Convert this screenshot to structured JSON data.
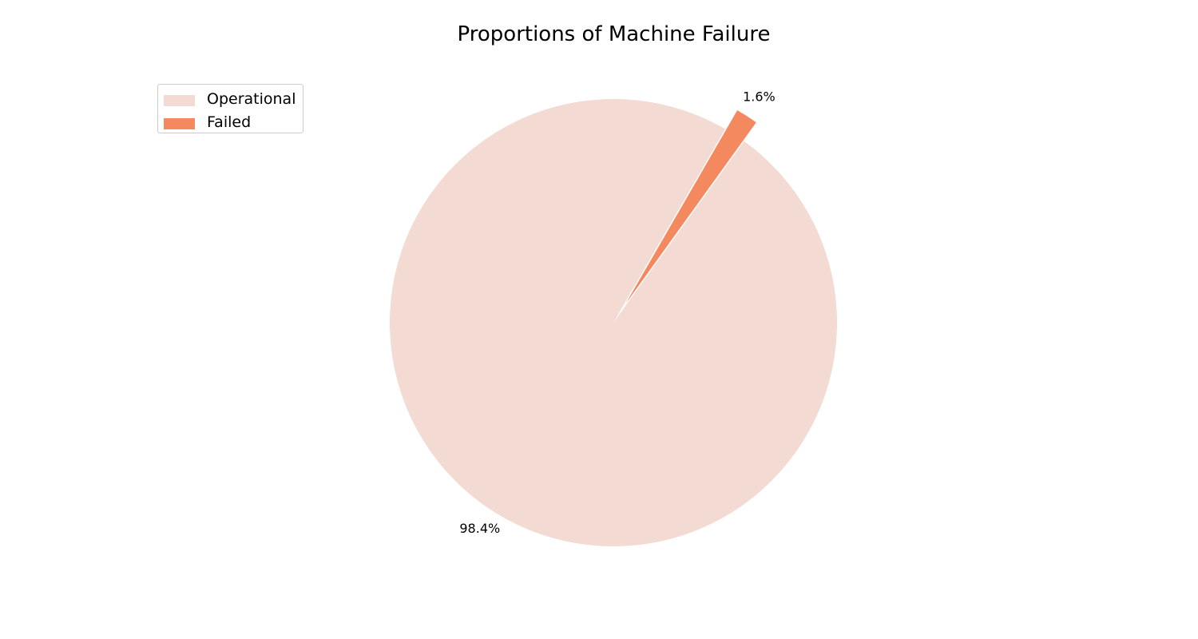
{
  "chart_data": {
    "type": "pie",
    "title": "Proportions of Machine Failure",
    "categories": [
      "Operational",
      "Failed"
    ],
    "values": [
      98.4,
      1.6
    ],
    "value_labels": [
      "98.4%",
      "1.6%"
    ],
    "colors": [
      "#f3dbd3",
      "#f4895f"
    ],
    "explode": [
      0,
      0.1
    ],
    "start_angle_deg": 60,
    "legend": {
      "placement": "upper-left",
      "entries": [
        "Operational",
        "Failed"
      ]
    }
  }
}
